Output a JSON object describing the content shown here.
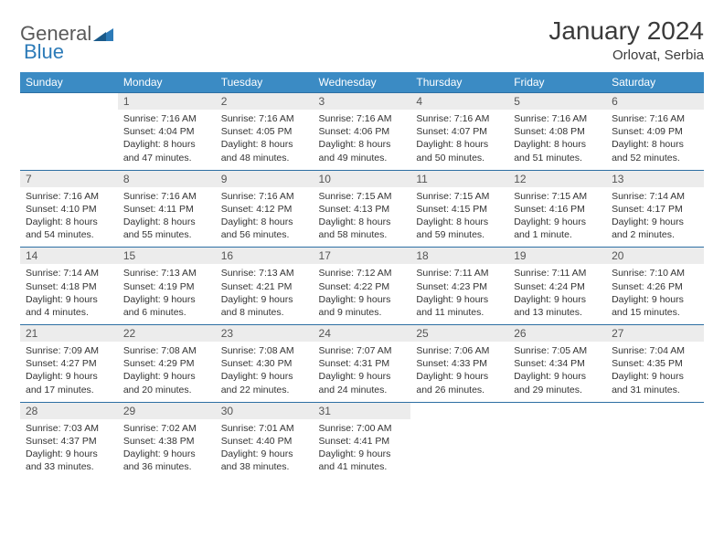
{
  "logo": {
    "part1": "General",
    "part2": "Blue"
  },
  "title": "January 2024",
  "location": "Orlovat, Serbia",
  "colors": {
    "header_bg": "#3b8bc4",
    "header_text": "#ffffff",
    "daynum_bg": "#ececec",
    "divider": "#2d6fa3",
    "logo_gray": "#5a5a5a",
    "logo_blue": "#2d7bb8"
  },
  "weekdays": [
    "Sunday",
    "Monday",
    "Tuesday",
    "Wednesday",
    "Thursday",
    "Friday",
    "Saturday"
  ],
  "weeks": [
    {
      "nums": [
        "",
        "1",
        "2",
        "3",
        "4",
        "5",
        "6"
      ],
      "cells": [
        null,
        {
          "sunrise": "7:16 AM",
          "sunset": "4:04 PM",
          "daylight": "8 hours and 47 minutes."
        },
        {
          "sunrise": "7:16 AM",
          "sunset": "4:05 PM",
          "daylight": "8 hours and 48 minutes."
        },
        {
          "sunrise": "7:16 AM",
          "sunset": "4:06 PM",
          "daylight": "8 hours and 49 minutes."
        },
        {
          "sunrise": "7:16 AM",
          "sunset": "4:07 PM",
          "daylight": "8 hours and 50 minutes."
        },
        {
          "sunrise": "7:16 AM",
          "sunset": "4:08 PM",
          "daylight": "8 hours and 51 minutes."
        },
        {
          "sunrise": "7:16 AM",
          "sunset": "4:09 PM",
          "daylight": "8 hours and 52 minutes."
        }
      ]
    },
    {
      "nums": [
        "7",
        "8",
        "9",
        "10",
        "11",
        "12",
        "13"
      ],
      "cells": [
        {
          "sunrise": "7:16 AM",
          "sunset": "4:10 PM",
          "daylight": "8 hours and 54 minutes."
        },
        {
          "sunrise": "7:16 AM",
          "sunset": "4:11 PM",
          "daylight": "8 hours and 55 minutes."
        },
        {
          "sunrise": "7:16 AM",
          "sunset": "4:12 PM",
          "daylight": "8 hours and 56 minutes."
        },
        {
          "sunrise": "7:15 AM",
          "sunset": "4:13 PM",
          "daylight": "8 hours and 58 minutes."
        },
        {
          "sunrise": "7:15 AM",
          "sunset": "4:15 PM",
          "daylight": "8 hours and 59 minutes."
        },
        {
          "sunrise": "7:15 AM",
          "sunset": "4:16 PM",
          "daylight": "9 hours and 1 minute."
        },
        {
          "sunrise": "7:14 AM",
          "sunset": "4:17 PM",
          "daylight": "9 hours and 2 minutes."
        }
      ]
    },
    {
      "nums": [
        "14",
        "15",
        "16",
        "17",
        "18",
        "19",
        "20"
      ],
      "cells": [
        {
          "sunrise": "7:14 AM",
          "sunset": "4:18 PM",
          "daylight": "9 hours and 4 minutes."
        },
        {
          "sunrise": "7:13 AM",
          "sunset": "4:19 PM",
          "daylight": "9 hours and 6 minutes."
        },
        {
          "sunrise": "7:13 AM",
          "sunset": "4:21 PM",
          "daylight": "9 hours and 8 minutes."
        },
        {
          "sunrise": "7:12 AM",
          "sunset": "4:22 PM",
          "daylight": "9 hours and 9 minutes."
        },
        {
          "sunrise": "7:11 AM",
          "sunset": "4:23 PM",
          "daylight": "9 hours and 11 minutes."
        },
        {
          "sunrise": "7:11 AM",
          "sunset": "4:24 PM",
          "daylight": "9 hours and 13 minutes."
        },
        {
          "sunrise": "7:10 AM",
          "sunset": "4:26 PM",
          "daylight": "9 hours and 15 minutes."
        }
      ]
    },
    {
      "nums": [
        "21",
        "22",
        "23",
        "24",
        "25",
        "26",
        "27"
      ],
      "cells": [
        {
          "sunrise": "7:09 AM",
          "sunset": "4:27 PM",
          "daylight": "9 hours and 17 minutes."
        },
        {
          "sunrise": "7:08 AM",
          "sunset": "4:29 PM",
          "daylight": "9 hours and 20 minutes."
        },
        {
          "sunrise": "7:08 AM",
          "sunset": "4:30 PM",
          "daylight": "9 hours and 22 minutes."
        },
        {
          "sunrise": "7:07 AM",
          "sunset": "4:31 PM",
          "daylight": "9 hours and 24 minutes."
        },
        {
          "sunrise": "7:06 AM",
          "sunset": "4:33 PM",
          "daylight": "9 hours and 26 minutes."
        },
        {
          "sunrise": "7:05 AM",
          "sunset": "4:34 PM",
          "daylight": "9 hours and 29 minutes."
        },
        {
          "sunrise": "7:04 AM",
          "sunset": "4:35 PM",
          "daylight": "9 hours and 31 minutes."
        }
      ]
    },
    {
      "nums": [
        "28",
        "29",
        "30",
        "31",
        "",
        "",
        ""
      ],
      "cells": [
        {
          "sunrise": "7:03 AM",
          "sunset": "4:37 PM",
          "daylight": "9 hours and 33 minutes."
        },
        {
          "sunrise": "7:02 AM",
          "sunset": "4:38 PM",
          "daylight": "9 hours and 36 minutes."
        },
        {
          "sunrise": "7:01 AM",
          "sunset": "4:40 PM",
          "daylight": "9 hours and 38 minutes."
        },
        {
          "sunrise": "7:00 AM",
          "sunset": "4:41 PM",
          "daylight": "9 hours and 41 minutes."
        },
        null,
        null,
        null
      ]
    }
  ],
  "labels": {
    "sunrise": "Sunrise:",
    "sunset": "Sunset:",
    "daylight": "Daylight:"
  }
}
